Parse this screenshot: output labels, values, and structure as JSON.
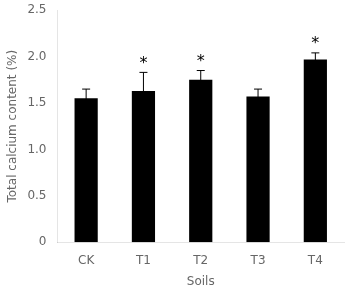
{
  "chart_data": {
    "type": "bar",
    "categories": [
      "CK",
      "T1",
      "T2",
      "T3",
      "T4"
    ],
    "values": [
      1.55,
      1.63,
      1.75,
      1.57,
      1.97
    ],
    "errors": [
      0.1,
      0.2,
      0.1,
      0.08,
      0.07
    ],
    "color": "#000000",
    "xlabel": "Soils",
    "ylabel": "Total calcium content (%)",
    "ylim": [
      0,
      2.5
    ],
    "yticks": [
      0,
      0.5,
      {
        "value": 1.0,
        "label": "1.0"
      },
      1.5,
      {
        "value": 2.0,
        "label": "2.0"
      },
      2.5
    ],
    "annotations": [
      {
        "x": "T1",
        "text": "*"
      },
      {
        "x": "T2",
        "text": "*"
      },
      {
        "x": "T4",
        "text": "*"
      }
    ],
    "grid": false
  }
}
